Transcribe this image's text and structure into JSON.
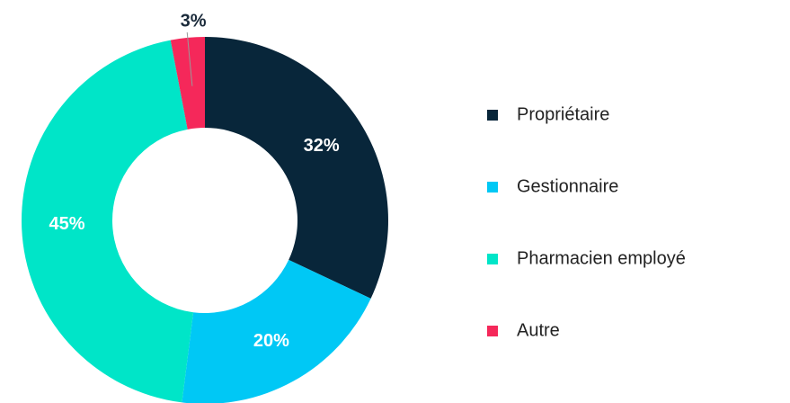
{
  "chart_data": {
    "type": "pie",
    "categories": [
      "Propriétaire",
      "Gestionnaire",
      "Pharmacien employé",
      "Autre"
    ],
    "values": [
      32,
      20,
      45,
      3
    ],
    "value_labels": [
      "32%",
      "20%",
      "45%",
      "3%"
    ],
    "colors": [
      "#08263a",
      "#00c8f5",
      "#00e5c8",
      "#f5285a"
    ],
    "legend": "right"
  }
}
